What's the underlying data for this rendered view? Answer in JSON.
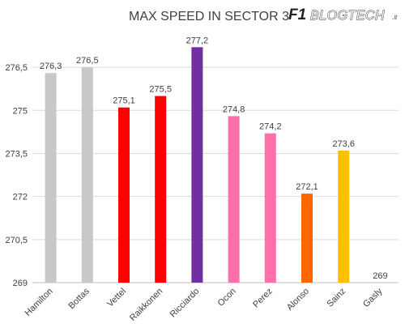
{
  "chart_data": {
    "type": "bar",
    "title": "MAX SPEED IN SECTOR 3",
    "categories": [
      "Hamilton",
      "Bottas",
      "Vettel",
      "Raikkonen",
      "Ricciardo",
      "Ocon",
      "Perez",
      "Alonso",
      "Sainz",
      "Gasly"
    ],
    "values": [
      276.3,
      276.5,
      275.1,
      275.5,
      277.2,
      274.8,
      274.2,
      272.1,
      273.6,
      269
    ],
    "value_labels": [
      "276,3",
      "276,5",
      "275,1",
      "275,5",
      "277,2",
      "274,8",
      "274,2",
      "272,1",
      "273,6",
      "269"
    ],
    "bar_colors": [
      "#c8c8c8",
      "#c8c8c8",
      "#ff0000",
      "#ff0000",
      "#7030a0",
      "#ff6fa8",
      "#ff6fa8",
      "#ff6600",
      "#ffc000",
      "#ffffff"
    ],
    "ylim": [
      269,
      277.8
    ],
    "yticks": [
      269,
      270.5,
      272,
      273.5,
      275,
      276.5
    ],
    "ytick_labels": [
      "269",
      "270,5",
      "272",
      "273,5",
      "275",
      "276,5"
    ],
    "grid": true,
    "xlabel": "",
    "ylabel": ""
  },
  "logo": {
    "mark": "F1",
    "wordmark": "BLOGTECH",
    "tld": ".it"
  }
}
